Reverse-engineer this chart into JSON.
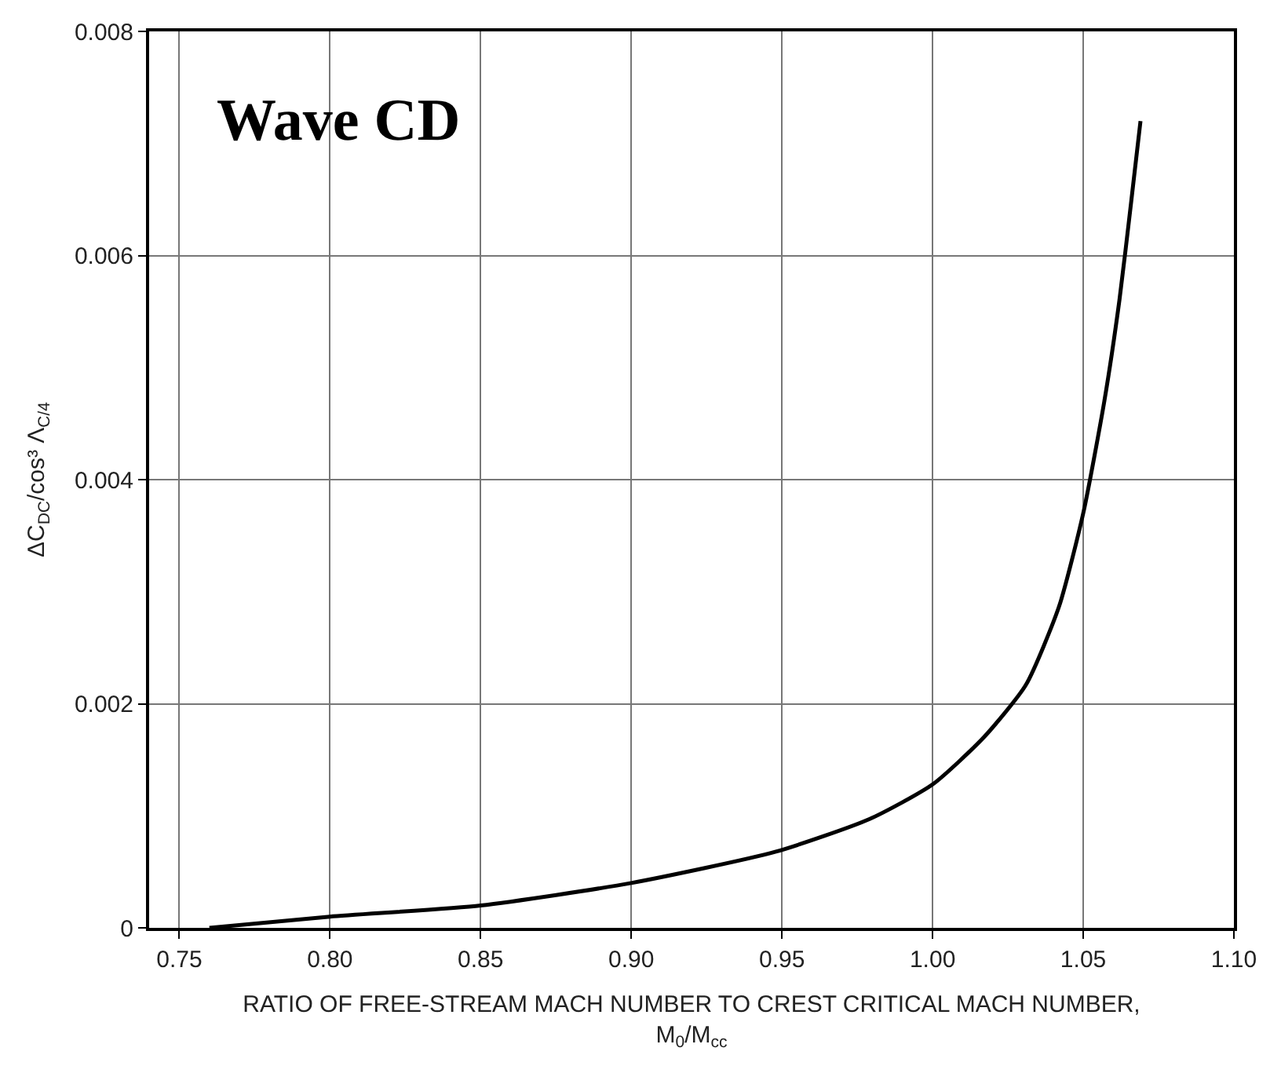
{
  "chart_data": {
    "type": "line",
    "xlabel": "RATIO OF FREE-STREAM MACH NUMBER TO CREST CRITICAL MACH NUMBER,\nM$_{0}$/M$_{cc}$",
    "ylabel": "ΔC$_{DC}$/cos³ Λ$_{C/4}$",
    "annotations": [
      "Wave CD"
    ],
    "x": [
      0.76,
      0.8,
      0.85,
      0.9,
      0.948,
      0.979,
      1.0,
      1.017,
      1.031,
      1.042,
      1.05,
      1.057,
      1.062,
      1.066,
      1.069
    ],
    "series": [
      {
        "color": "#000000",
        "values": [
          0.0,
          0.0001,
          0.0002,
          0.0004,
          0.00068,
          0.00097,
          0.00128,
          0.0017,
          0.00217,
          0.00287,
          0.0037,
          0.0047,
          0.0056,
          0.0065,
          0.0072
        ]
      }
    ],
    "xlim": [
      0.74,
      1.1
    ],
    "ylim": [
      0,
      0.008
    ],
    "xticks": [
      {
        "value": 0.75,
        "label": "0.75"
      },
      {
        "value": 0.8,
        "label": "0.80"
      },
      {
        "value": 0.85,
        "label": "0.85"
      },
      {
        "value": 0.9,
        "label": "0.90"
      },
      {
        "value": 0.95,
        "label": "0.95"
      },
      {
        "value": 1.0,
        "label": "1.00"
      },
      {
        "value": 1.05,
        "label": "1.05"
      },
      {
        "value": 1.1,
        "label": "1.10"
      }
    ],
    "yticks": [
      0,
      0.002,
      0.004,
      0.006,
      0.008
    ],
    "grid": true,
    "marker": "none",
    "line_style": "solid"
  }
}
